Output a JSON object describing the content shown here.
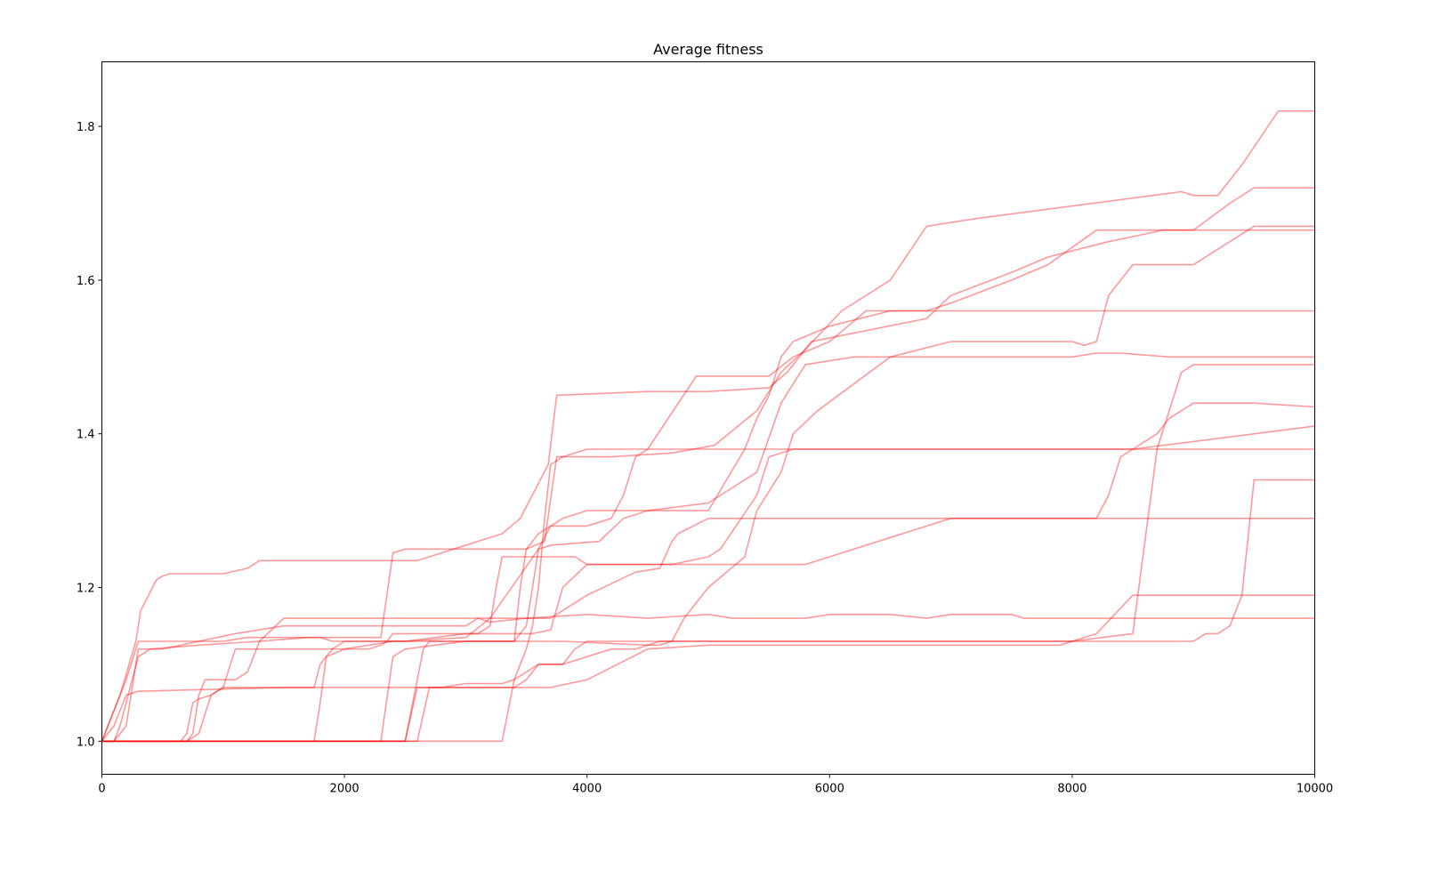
{
  "chart_data": {
    "type": "line",
    "title": "Average fitness",
    "xlabel": "",
    "ylabel": "",
    "xlim": [
      0,
      10000
    ],
    "ylim": [
      0.957,
      1.884
    ],
    "x_ticks": [
      0,
      2000,
      4000,
      6000,
      8000,
      10000
    ],
    "x_tick_labels": [
      "0",
      "2000",
      "4000",
      "6000",
      "8000",
      "10000"
    ],
    "y_ticks": [
      1.0,
      1.2,
      1.4,
      1.6,
      1.8
    ],
    "y_tick_labels": [
      "1.0",
      "1.2",
      "1.4",
      "1.6",
      "1.8"
    ],
    "grid": false,
    "legend": "none",
    "line_color": "#ff0000",
    "line_opacity": 0.4,
    "series": [
      {
        "x": [
          0,
          150,
          280,
          320,
          450,
          500,
          560,
          1000,
          1200,
          1300,
          2600,
          3300,
          3450,
          3680,
          3750,
          4500,
          4600,
          5000,
          5500,
          5650,
          5850,
          6800,
          7000,
          7500,
          7800,
          8300,
          8600,
          8750,
          9000,
          9300,
          10000
        ],
        "y": [
          1.0,
          1.06,
          1.13,
          1.17,
          1.21,
          1.215,
          1.218,
          1.218,
          1.225,
          1.235,
          1.235,
          1.27,
          1.29,
          1.36,
          1.45,
          1.455,
          1.455,
          1.455,
          1.46,
          1.48,
          1.52,
          1.55,
          1.58,
          1.61,
          1.63,
          1.65,
          1.66,
          1.665,
          1.665,
          1.665,
          1.665
        ]
      },
      {
        "x": [
          0,
          200,
          300,
          900,
          1000,
          1200,
          1300,
          2300,
          2400,
          2500,
          3000,
          3500,
          3650,
          3750,
          4200,
          4700,
          5050,
          5400,
          5600,
          5800,
          6100,
          6500,
          6800,
          7200,
          8900,
          9000,
          9200,
          9400,
          9700,
          10000
        ],
        "y": [
          1.0,
          1.08,
          1.13,
          1.13,
          1.13,
          1.135,
          1.135,
          1.135,
          1.245,
          1.25,
          1.25,
          1.25,
          1.26,
          1.37,
          1.37,
          1.375,
          1.385,
          1.43,
          1.48,
          1.51,
          1.56,
          1.6,
          1.67,
          1.68,
          1.715,
          1.71,
          1.71,
          1.75,
          1.82,
          1.82
        ]
      },
      {
        "x": [
          0,
          100,
          150,
          300,
          400,
          800,
          1300,
          1700,
          1800,
          1900,
          2500,
          3000,
          3200,
          3600,
          3700,
          4100,
          4300,
          4500,
          5000,
          5400,
          5600,
          5800,
          6200,
          8000,
          8200,
          8400,
          8800,
          9200,
          9400,
          9600,
          10000
        ],
        "y": [
          1.0,
          1.0,
          1.02,
          1.11,
          1.12,
          1.125,
          1.13,
          1.135,
          1.135,
          1.13,
          1.13,
          1.135,
          1.16,
          1.25,
          1.255,
          1.26,
          1.29,
          1.3,
          1.31,
          1.35,
          1.44,
          1.49,
          1.5,
          1.5,
          1.505,
          1.505,
          1.5,
          1.5,
          1.5,
          1.5,
          1.5
        ]
      },
      {
        "x": [
          0,
          100,
          200,
          300,
          400,
          500,
          800,
          1100,
          1500,
          2000,
          2500,
          3000,
          3100,
          3200,
          3500,
          4000,
          4500,
          5000,
          5200,
          5500,
          5800,
          6000,
          6500,
          6800,
          7000,
          7500,
          7600,
          8000,
          10000
        ],
        "y": [
          1.0,
          1.0,
          1.02,
          1.12,
          1.12,
          1.12,
          1.13,
          1.14,
          1.15,
          1.15,
          1.15,
          1.15,
          1.16,
          1.155,
          1.16,
          1.165,
          1.16,
          1.165,
          1.16,
          1.16,
          1.16,
          1.165,
          1.165,
          1.16,
          1.165,
          1.165,
          1.16,
          1.16,
          1.16
        ]
      },
      {
        "x": [
          0,
          100,
          200,
          300,
          1500,
          2500,
          3200,
          3700,
          4000,
          4500,
          5000,
          5500,
          6000,
          6500,
          7000,
          7500,
          7900,
          8000,
          8200,
          8500,
          10000
        ],
        "y": [
          1.0,
          1.02,
          1.06,
          1.065,
          1.07,
          1.07,
          1.07,
          1.07,
          1.08,
          1.12,
          1.125,
          1.125,
          1.125,
          1.125,
          1.125,
          1.125,
          1.125,
          1.13,
          1.14,
          1.19,
          1.19
        ]
      },
      {
        "x": [
          0,
          300,
          600,
          700,
          750,
          800,
          850,
          900,
          1000,
          1100,
          1200,
          1300,
          1500,
          1900,
          2300,
          2900,
          3300,
          3600,
          3700,
          4000,
          4400,
          4600,
          4700,
          4750,
          5000,
          5400,
          5500,
          5800,
          10000
        ],
        "y": [
          1.0,
          1.0,
          1.0,
          1.0,
          1.01,
          1.06,
          1.08,
          1.08,
          1.08,
          1.08,
          1.09,
          1.13,
          1.16,
          1.16,
          1.16,
          1.16,
          1.16,
          1.16,
          1.16,
          1.19,
          1.22,
          1.225,
          1.26,
          1.27,
          1.29,
          1.29,
          1.29,
          1.29,
          1.29
        ]
      },
      {
        "x": [
          0,
          600,
          650,
          700,
          750,
          800,
          900,
          1000,
          1100,
          1300,
          2200,
          2300,
          2350,
          2400,
          2500,
          3500,
          3550,
          3700,
          3800,
          4000,
          4200,
          4400,
          4700,
          5000,
          5100,
          5400,
          5500,
          5700,
          6000,
          8000,
          8300,
          8500,
          9000,
          10000
        ],
        "y": [
          1.0,
          1.0,
          1.0,
          1.01,
          1.05,
          1.055,
          1.06,
          1.07,
          1.12,
          1.12,
          1.12,
          1.125,
          1.13,
          1.14,
          1.14,
          1.14,
          1.14,
          1.145,
          1.2,
          1.23,
          1.23,
          1.23,
          1.23,
          1.24,
          1.25,
          1.32,
          1.37,
          1.38,
          1.38,
          1.38,
          1.38,
          1.38,
          1.38,
          1.38
        ]
      },
      {
        "x": [
          0,
          700,
          800,
          900,
          1000,
          1400,
          1600,
          1700,
          1750,
          1800,
          1900,
          2000,
          2500,
          3000,
          3100,
          3200,
          3250,
          3300,
          3500,
          3900,
          4000,
          4500,
          4600,
          4700,
          4800,
          5100,
          5200,
          5700,
          5800,
          7000,
          7500,
          7800,
          7900,
          8000,
          8200,
          8300,
          8400,
          8500,
          9000,
          10000
        ],
        "y": [
          1.0,
          1.0,
          1.01,
          1.06,
          1.07,
          1.07,
          1.07,
          1.07,
          1.07,
          1.1,
          1.12,
          1.13,
          1.13,
          1.14,
          1.14,
          1.15,
          1.2,
          1.24,
          1.24,
          1.24,
          1.23,
          1.23,
          1.23,
          1.23,
          1.23,
          1.23,
          1.23,
          1.23,
          1.23,
          1.29,
          1.29,
          1.29,
          1.29,
          1.29,
          1.29,
          1.32,
          1.37,
          1.38,
          1.39,
          1.41
        ]
      },
      {
        "x": [
          0,
          1750,
          1800,
          1850,
          2000,
          2400,
          2500,
          2800,
          3200,
          3300,
          3400,
          3700,
          3800,
          4500,
          4600,
          4700,
          4800,
          5000,
          5300,
          5400,
          5600,
          5700,
          5900,
          6500,
          7000,
          7500,
          7700,
          7800,
          7900,
          8000,
          8100,
          8200,
          8300,
          8500,
          9000,
          9500,
          10000
        ],
        "y": [
          1.0,
          1.0,
          1.05,
          1.11,
          1.12,
          1.13,
          1.13,
          1.13,
          1.13,
          1.13,
          1.13,
          1.13,
          1.13,
          1.125,
          1.125,
          1.13,
          1.16,
          1.2,
          1.24,
          1.3,
          1.35,
          1.4,
          1.43,
          1.5,
          1.52,
          1.52,
          1.52,
          1.52,
          1.52,
          1.52,
          1.515,
          1.52,
          1.58,
          1.62,
          1.62,
          1.67,
          1.67
        ]
      },
      {
        "x": [
          0,
          2300,
          2400,
          2500,
          3000,
          3400,
          3450,
          3500,
          3600,
          3700,
          4000,
          4200,
          4300,
          4400,
          4500,
          4900,
          5000,
          5500,
          5700,
          6000,
          6300,
          6800,
          7000,
          7500,
          7800,
          8200,
          8400,
          8600,
          9000,
          9300,
          9500,
          10000
        ],
        "y": [
          1.0,
          1.0,
          1.11,
          1.12,
          1.13,
          1.13,
          1.2,
          1.25,
          1.27,
          1.28,
          1.28,
          1.29,
          1.32,
          1.37,
          1.38,
          1.475,
          1.475,
          1.475,
          1.5,
          1.52,
          1.56,
          1.56,
          1.57,
          1.6,
          1.62,
          1.665,
          1.665,
          1.665,
          1.665,
          1.7,
          1.72,
          1.72
        ]
      },
      {
        "x": [
          0,
          2500,
          2550,
          2650,
          2700,
          3000,
          3300,
          3400,
          3500,
          3550,
          3600,
          3700,
          3800,
          4000,
          4100,
          4300,
          4600,
          5000,
          5300,
          5400,
          5500,
          5600,
          5700,
          6000,
          6500,
          7000,
          7500,
          8000,
          8500,
          9000,
          9500,
          10000
        ],
        "y": [
          1.0,
          1.0,
          1.04,
          1.12,
          1.13,
          1.13,
          1.13,
          1.13,
          1.15,
          1.2,
          1.25,
          1.28,
          1.29,
          1.3,
          1.3,
          1.3,
          1.3,
          1.3,
          1.38,
          1.42,
          1.45,
          1.5,
          1.52,
          1.54,
          1.56,
          1.56,
          1.56,
          1.56,
          1.56,
          1.56,
          1.56,
          1.56
        ]
      },
      {
        "x": [
          0,
          2500,
          2600,
          3000,
          3300,
          3400,
          3500,
          3600,
          3800,
          4000,
          4200,
          4400,
          4600,
          4800,
          5000,
          5500,
          6000,
          6500,
          7000,
          7500,
          8000,
          8500,
          9000,
          9100,
          9200,
          9300,
          9400,
          9500,
          10000
        ],
        "y": [
          1.0,
          1.0,
          1.07,
          1.07,
          1.07,
          1.07,
          1.08,
          1.1,
          1.1,
          1.11,
          1.12,
          1.12,
          1.13,
          1.13,
          1.13,
          1.13,
          1.13,
          1.13,
          1.13,
          1.13,
          1.13,
          1.13,
          1.13,
          1.14,
          1.14,
          1.15,
          1.19,
          1.34,
          1.34
        ]
      },
      {
        "x": [
          0,
          2600,
          2700,
          2800,
          3000,
          3300,
          3400,
          3500,
          3600,
          3800,
          3900,
          4000,
          4200,
          4400,
          4600,
          4700,
          5000,
          5500,
          5800,
          6000,
          6500,
          7000,
          7500,
          8000,
          8500,
          8700,
          8900,
          9000,
          10000
        ],
        "y": [
          1.0,
          1.0,
          1.07,
          1.07,
          1.075,
          1.075,
          1.08,
          1.09,
          1.1,
          1.1,
          1.12,
          1.13,
          1.13,
          1.13,
          1.13,
          1.13,
          1.13,
          1.13,
          1.13,
          1.13,
          1.13,
          1.13,
          1.13,
          1.13,
          1.14,
          1.38,
          1.48,
          1.49,
          1.49
        ]
      },
      {
        "x": [
          0,
          3300,
          3400,
          3500,
          3550,
          3600,
          3650,
          3700,
          3800,
          4000,
          4200,
          4500,
          4800,
          5000,
          5500,
          6000,
          6500,
          7000,
          7500,
          8000,
          8500,
          8700,
          8800,
          8900,
          9000,
          9500,
          10000
        ],
        "y": [
          1.0,
          1.0,
          1.08,
          1.12,
          1.15,
          1.2,
          1.29,
          1.36,
          1.37,
          1.38,
          1.38,
          1.38,
          1.38,
          1.38,
          1.38,
          1.38,
          1.38,
          1.38,
          1.38,
          1.38,
          1.38,
          1.4,
          1.42,
          1.43,
          1.44,
          1.44,
          1.435
        ]
      }
    ]
  }
}
